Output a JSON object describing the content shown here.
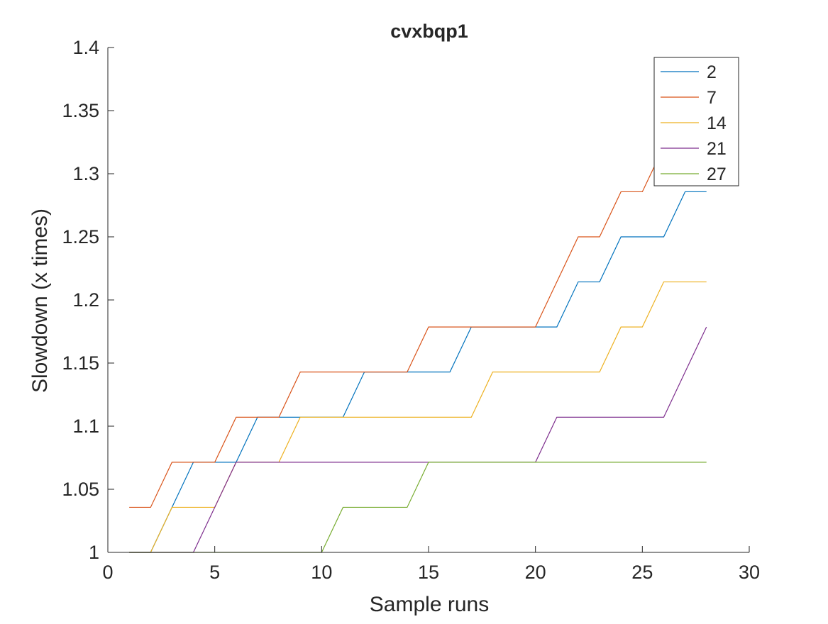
{
  "chart_data": {
    "type": "line",
    "title": "cvxbqp1",
    "xlabel": "Sample runs",
    "ylabel": "Slowdown (x times)",
    "xlim": [
      0,
      30
    ],
    "ylim": [
      1,
      1.4
    ],
    "xticks": [
      0,
      5,
      10,
      15,
      20,
      25,
      30
    ],
    "yticks": [
      1,
      1.05,
      1.1,
      1.15,
      1.2,
      1.25,
      1.3,
      1.35,
      1.4
    ],
    "xtick_labels": [
      "0",
      "5",
      "10",
      "15",
      "20",
      "25",
      "30"
    ],
    "ytick_labels": [
      "1",
      "1.05",
      "1.1",
      "1.15",
      "1.2",
      "1.25",
      "1.3",
      "1.35",
      "1.4"
    ],
    "grid": false,
    "legend_position": "top-right",
    "x": [
      1,
      2,
      3,
      4,
      5,
      6,
      7,
      8,
      9,
      10,
      11,
      12,
      13,
      14,
      15,
      16,
      17,
      18,
      19,
      20,
      21,
      22,
      23,
      24,
      25,
      26,
      27,
      28
    ],
    "series": [
      {
        "name": "2",
        "color": "#0072BD",
        "values": [
          1,
          1,
          1.0357,
          1.0714,
          1.0714,
          1.0714,
          1.1071,
          1.1071,
          1.1071,
          1.1071,
          1.1071,
          1.1429,
          1.1429,
          1.1429,
          1.1429,
          1.1429,
          1.1786,
          1.1786,
          1.1786,
          1.1786,
          1.1786,
          1.2143,
          1.2143,
          1.25,
          1.25,
          1.25,
          1.2857,
          1.2857
        ]
      },
      {
        "name": "7",
        "color": "#D95319",
        "values": [
          1.0357,
          1.0357,
          1.0714,
          1.0714,
          1.0714,
          1.1071,
          1.1071,
          1.1071,
          1.1429,
          1.1429,
          1.1429,
          1.1429,
          1.1429,
          1.1429,
          1.1786,
          1.1786,
          1.1786,
          1.1786,
          1.1786,
          1.1786,
          1.2143,
          1.25,
          1.25,
          1.2857,
          1.2857,
          1.3214,
          1.3571,
          1.3571
        ]
      },
      {
        "name": "14",
        "color": "#EDB120",
        "values": [
          1,
          1,
          1.0357,
          1.0357,
          1.0357,
          1.0714,
          1.0714,
          1.0714,
          1.1071,
          1.1071,
          1.1071,
          1.1071,
          1.1071,
          1.1071,
          1.1071,
          1.1071,
          1.1071,
          1.1429,
          1.1429,
          1.1429,
          1.1429,
          1.1429,
          1.1429,
          1.1786,
          1.1786,
          1.2143,
          1.2143,
          1.2143
        ]
      },
      {
        "name": "21",
        "color": "#7E2F8E",
        "values": [
          1,
          1,
          1,
          1,
          1.0357,
          1.0714,
          1.0714,
          1.0714,
          1.0714,
          1.0714,
          1.0714,
          1.0714,
          1.0714,
          1.0714,
          1.0714,
          1.0714,
          1.0714,
          1.0714,
          1.0714,
          1.0714,
          1.1071,
          1.1071,
          1.1071,
          1.1071,
          1.1071,
          1.1071,
          1.1429,
          1.1786
        ]
      },
      {
        "name": "27",
        "color": "#77AC30",
        "values": [
          1,
          1,
          1,
          1,
          1,
          1,
          1,
          1,
          1,
          1,
          1.0357,
          1.0357,
          1.0357,
          1.0357,
          1.0714,
          1.0714,
          1.0714,
          1.0714,
          1.0714,
          1.0714,
          1.0714,
          1.0714,
          1.0714,
          1.0714,
          1.0714,
          1.0714,
          1.0714,
          1.0714
        ]
      }
    ]
  }
}
